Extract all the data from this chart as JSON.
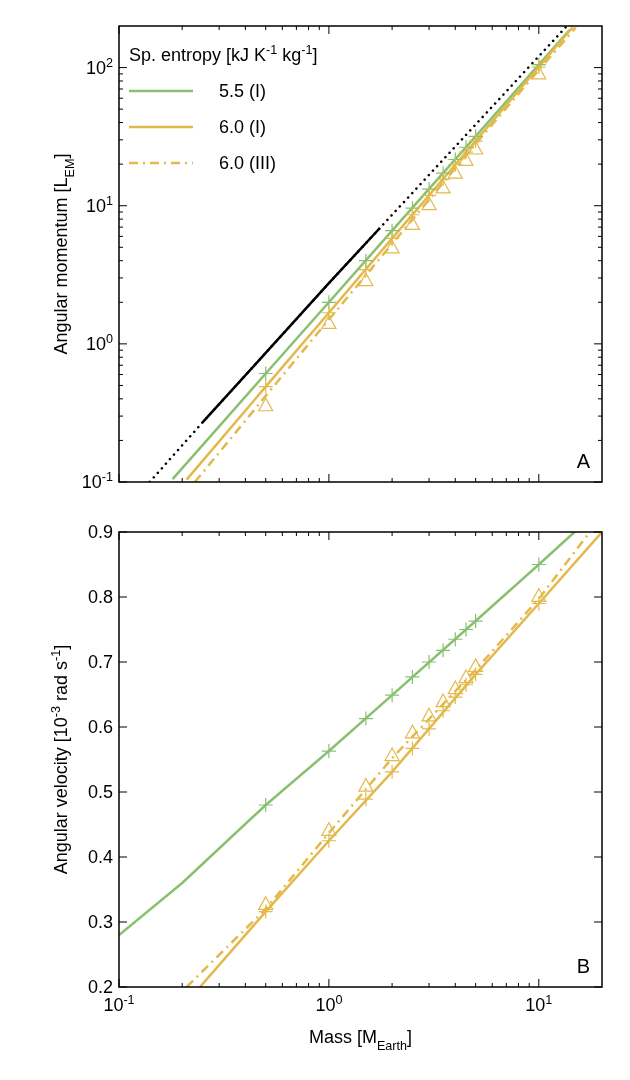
{
  "chart_data": [
    {
      "type": "line",
      "ylabel": "Angular momentum [L$_{EM}$]",
      "legend_title": "Sp. entropy [kJ K$^{-1}$ kg$^{-1}$]",
      "legend": "top left",
      "log": "xy",
      "tick_labels": "y",
      "grid": false,
      "annotations": [
        "A"
      ],
      "xlim": [
        0.1,
        20
      ],
      "xticks": [
        {
          "value": 0.1,
          "label": null
        },
        {
          "value": 0.2,
          "label": null
        },
        {
          "value": 0.3,
          "label": null
        },
        {
          "value": 0.4,
          "label": null
        },
        {
          "value": 0.5,
          "label": null
        },
        {
          "value": 0.6,
          "label": null
        },
        {
          "value": 0.7,
          "label": null
        },
        {
          "value": 0.8,
          "label": null
        },
        {
          "value": 0.9,
          "label": null
        },
        {
          "value": 1,
          "label": null
        },
        {
          "value": 2,
          "label": null
        },
        {
          "value": 3,
          "label": null
        },
        {
          "value": 4,
          "label": null
        },
        {
          "value": 5,
          "label": null
        },
        {
          "value": 6,
          "label": null
        },
        {
          "value": 7,
          "label": null
        },
        {
          "value": 8,
          "label": null
        },
        {
          "value": 9,
          "label": null
        },
        {
          "value": 10,
          "label": null
        }
      ],
      "ylim": [
        0.1,
        200
      ],
      "yticks": [
        {
          "value": 0.1,
          "label": "10$^{-1}$"
        },
        {
          "value": 0.2,
          "label": null
        },
        {
          "value": 0.3,
          "label": null
        },
        {
          "value": 0.4,
          "label": null
        },
        {
          "value": 0.5,
          "label": null
        },
        {
          "value": 0.6,
          "label": null
        },
        {
          "value": 0.7,
          "label": null
        },
        {
          "value": 0.8,
          "label": null
        },
        {
          "value": 0.9,
          "label": null
        },
        {
          "value": 1,
          "label": "10$^{0}$"
        },
        {
          "value": 2,
          "label": null
        },
        {
          "value": 3,
          "label": null
        },
        {
          "value": 4,
          "label": null
        },
        {
          "value": 5,
          "label": null
        },
        {
          "value": 6,
          "label": null
        },
        {
          "value": 7,
          "label": null
        },
        {
          "value": 8,
          "label": null
        },
        {
          "value": 9,
          "label": null
        },
        {
          "value": 10,
          "label": "10$^{1}$"
        },
        {
          "value": 20,
          "label": null
        },
        {
          "value": 30,
          "label": null
        },
        {
          "value": 40,
          "label": null
        },
        {
          "value": 50,
          "label": null
        },
        {
          "value": 60,
          "label": null
        },
        {
          "value": 70,
          "label": null
        },
        {
          "value": 80,
          "label": null
        },
        {
          "value": 90,
          "label": null
        },
        {
          "value": 100,
          "label": "10$^{2}$"
        }
      ],
      "series": [
        {
          "type": "line",
          "color": "#000000",
          "line_style": "dotted",
          "x": [
            0.14,
            0.25,
            0.5,
            1,
            1.75,
            13.6
          ],
          "values": [
            0.1,
            0.27,
            0.86,
            2.75,
            6.9,
            200
          ]
        },
        {
          "type": "line",
          "color": "#000000",
          "line_style": "solid",
          "x": [
            0.25,
            0.5,
            1,
            1.75
          ],
          "values": [
            0.27,
            0.86,
            2.75,
            6.9
          ]
        },
        {
          "type": "line",
          "name": "5.5 (I)",
          "color": "#88c070",
          "line_style": "solid",
          "x": [
            0.18,
            0.5,
            1,
            2,
            5,
            10,
            14
          ],
          "values": [
            0.105,
            0.61,
            2.0,
            6.6,
            31.8,
            105,
            187
          ]
        },
        {
          "type": "line",
          "name": "6.0 (I)",
          "color": "#e3b94b",
          "line_style": "solid",
          "x": [
            0.21,
            0.5,
            1,
            2,
            5,
            10,
            14.5
          ],
          "values": [
            0.104,
            0.49,
            1.68,
            5.8,
            29.4,
            101,
            196
          ]
        },
        {
          "type": "line",
          "name": "6.0 (III)",
          "color": "#e3b94b",
          "line_style": "dashed",
          "x": [
            0.23,
            0.5,
            1,
            2,
            5,
            10,
            15
          ],
          "values": [
            0.1,
            0.42,
            1.5,
            5.3,
            28,
            96,
            195
          ]
        },
        {
          "type": "scatter",
          "color": "#88c070",
          "marker": "cross",
          "x": [
            0.5,
            1,
            1.5,
            2,
            2.5,
            3,
            3.5,
            4,
            4.5,
            5,
            10
          ],
          "values": [
            0.61,
            2.0,
            4.0,
            6.6,
            9.6,
            13.2,
            17.2,
            21.6,
            26.5,
            31.8,
            105
          ]
        },
        {
          "type": "scatter",
          "color": "#e3b94b",
          "marker": "cross",
          "x": [
            0.5,
            1,
            1.5,
            2,
            2.5,
            3,
            3.5,
            4,
            4.5,
            5,
            10
          ],
          "values": [
            0.49,
            1.68,
            3.45,
            5.8,
            8.6,
            11.9,
            15.6,
            19.8,
            24.4,
            29.4,
            101
          ]
        },
        {
          "type": "scatter",
          "color": "#e3b94b",
          "marker": "triangle",
          "x": [
            0.5,
            1,
            1.5,
            2,
            2.5,
            3,
            3.5,
            4,
            4.5,
            5,
            10
          ],
          "values": [
            0.36,
            1.42,
            2.9,
            5.0,
            7.4,
            10.3,
            13.6,
            17.4,
            21.5,
            26,
            91
          ]
        }
      ]
    },
    {
      "type": "line",
      "xlabel": "Mass [M$_{Earth}$]",
      "ylabel": "Angular velocity [10$^{-3}$ rad s$^{-1}$]",
      "log": "x",
      "grid": false,
      "annotations": [
        "B"
      ],
      "xlim": [
        0.1,
        20
      ],
      "xticks": [
        {
          "value": 0.1,
          "label": "10$^{-1}$"
        },
        {
          "value": 0.2,
          "label": null
        },
        {
          "value": 0.3,
          "label": null
        },
        {
          "value": 0.4,
          "label": null
        },
        {
          "value": 0.5,
          "label": null
        },
        {
          "value": 0.6,
          "label": null
        },
        {
          "value": 0.7,
          "label": null
        },
        {
          "value": 0.8,
          "label": null
        },
        {
          "value": 0.9,
          "label": null
        },
        {
          "value": 1,
          "label": "10$^{0}$"
        },
        {
          "value": 2,
          "label": null
        },
        {
          "value": 3,
          "label": null
        },
        {
          "value": 4,
          "label": null
        },
        {
          "value": 5,
          "label": null
        },
        {
          "value": 6,
          "label": null
        },
        {
          "value": 7,
          "label": null
        },
        {
          "value": 8,
          "label": null
        },
        {
          "value": 9,
          "label": null
        },
        {
          "value": 10,
          "label": "10$^{1}$"
        }
      ],
      "ylim": [
        0.2,
        0.9
      ],
      "yticks": [
        0.2,
        0.3,
        0.4,
        0.5,
        0.6,
        0.7,
        0.8,
        0.9
      ],
      "series": [
        {
          "type": "line",
          "color": "#88c070",
          "line_style": "solid",
          "x": [
            0.1,
            0.2,
            0.5,
            1,
            2,
            5,
            10,
            14.8
          ],
          "values": [
            0.28,
            0.36,
            0.48,
            0.563,
            0.649,
            0.763,
            0.85,
            0.9
          ]
        },
        {
          "type": "line",
          "color": "#e3b94b",
          "line_style": "solid",
          "x": [
            0.243,
            0.5,
            1,
            2,
            5,
            10,
            20
          ],
          "values": [
            0.2,
            0.316,
            0.425,
            0.531,
            0.681,
            0.79,
            0.9
          ]
        },
        {
          "type": "line",
          "color": "#e3b94b",
          "line_style": "dashed",
          "x": [
            0.21,
            0.5,
            1,
            2,
            5,
            10,
            17.5
          ],
          "values": [
            0.2,
            0.32,
            0.437,
            0.552,
            0.688,
            0.797,
            0.9
          ]
        },
        {
          "type": "scatter",
          "color": "#88c070",
          "marker": "cross",
          "x": [
            0.5,
            1,
            1.5,
            2,
            2.5,
            3,
            3.5,
            4,
            4.5,
            5,
            10
          ],
          "values": [
            0.48,
            0.563,
            0.613,
            0.649,
            0.677,
            0.7,
            0.718,
            0.735,
            0.75,
            0.763,
            0.85
          ]
        },
        {
          "type": "scatter",
          "color": "#e3b94b",
          "marker": "cross",
          "x": [
            0.5,
            1,
            1.5,
            2,
            2.5,
            3,
            3.5,
            4,
            4.5,
            5,
            10
          ],
          "values": [
            0.316,
            0.425,
            0.489,
            0.531,
            0.567,
            0.597,
            0.625,
            0.646,
            0.665,
            0.681,
            0.79
          ]
        },
        {
          "type": "scatter",
          "color": "#e3b94b",
          "marker": "triangle",
          "x": [
            0.5,
            1,
            1.5,
            2,
            2.5,
            3,
            3.5,
            4,
            4.5,
            5,
            10
          ],
          "values": [
            0.328,
            0.442,
            0.51,
            0.557,
            0.592,
            0.618,
            0.64,
            0.66,
            0.677,
            0.694,
            0.802
          ]
        }
      ]
    }
  ]
}
